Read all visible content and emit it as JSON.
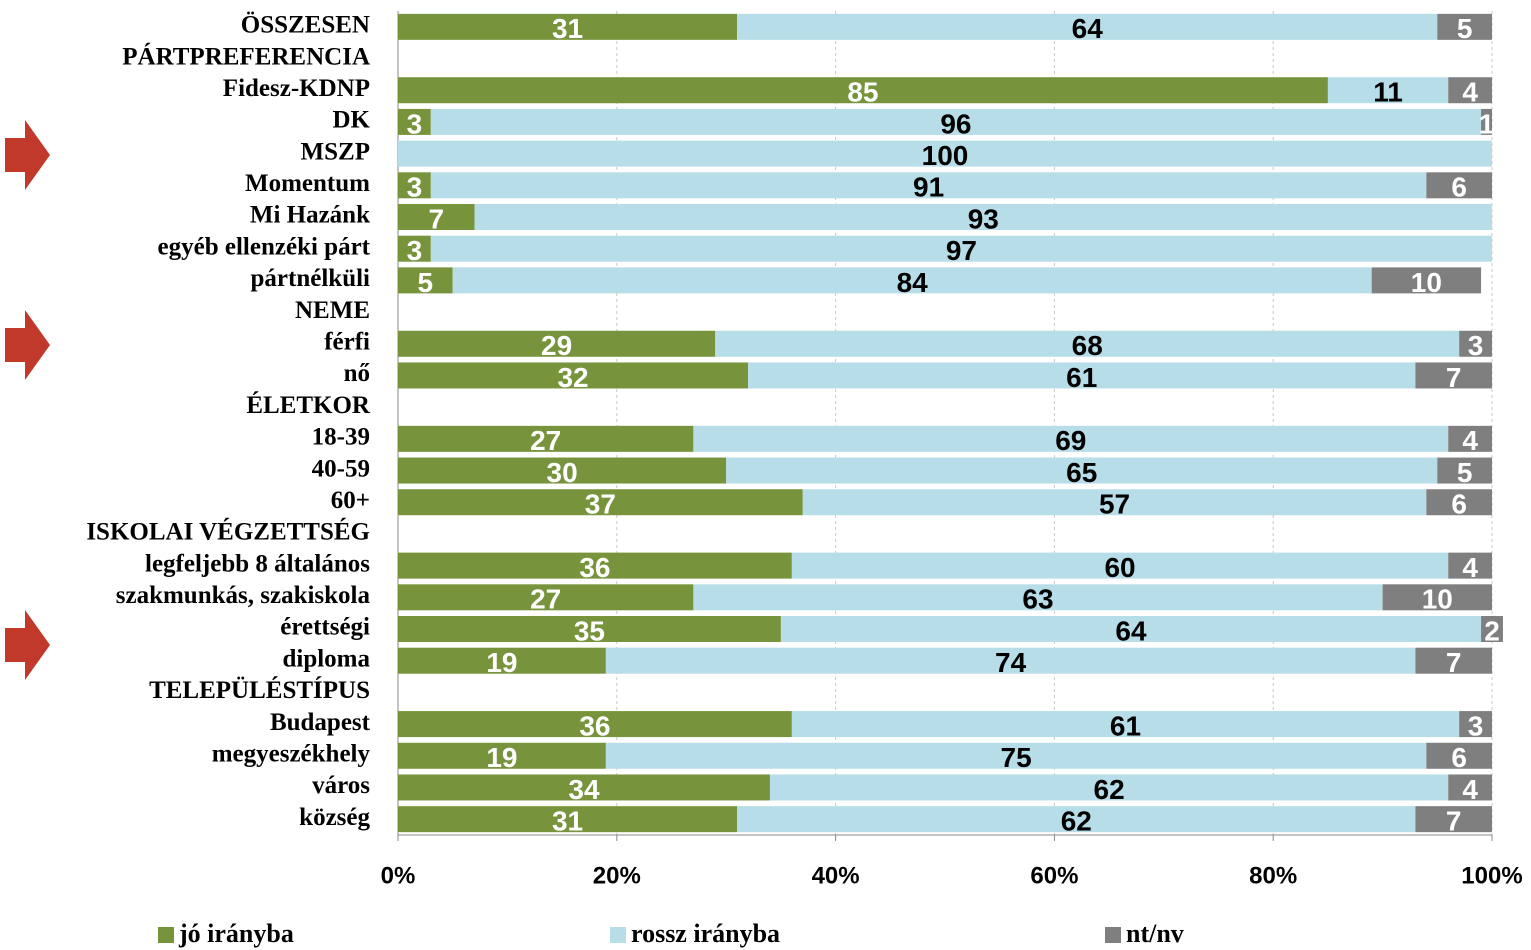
{
  "chart_data": {
    "type": "stacked-bar-horizontal",
    "categories": [
      "ÖSSZESEN",
      "PÁRTPREFERENCIA",
      "Fidesz-KDNP",
      "DK",
      "MSZP",
      "Momentum",
      "Mi Hazánk",
      "egyéb ellenzéki párt",
      "pártnélküli",
      "NEME",
      "férfi",
      "nő",
      "ÉLETKOR",
      "18-39",
      "40-59",
      "60+",
      "ISKOLAI VÉGZETTSÉG",
      "legfeljebb 8 általános",
      "szakmunkás, szakiskola",
      "érettségi",
      "diploma",
      "TELEPÜLÉSTÍPUS",
      "Budapest",
      "megyeszékhely",
      "város",
      "község"
    ],
    "series": [
      {
        "name": "jó irányba",
        "color": "#77933c",
        "label_color": "#ffffff",
        "values": [
          31,
          null,
          85,
          3,
          null,
          3,
          7,
          3,
          5,
          null,
          29,
          32,
          null,
          27,
          30,
          37,
          null,
          36,
          27,
          35,
          19,
          null,
          36,
          19,
          34,
          31
        ]
      },
      {
        "name": "rossz irányba",
        "color": "#b7dde8",
        "label_color": "#000000",
        "values": [
          64,
          null,
          11,
          96,
          100,
          91,
          93,
          97,
          84,
          null,
          68,
          61,
          null,
          69,
          65,
          57,
          null,
          60,
          63,
          64,
          74,
          null,
          61,
          75,
          62,
          62
        ]
      },
      {
        "name": "nt/nv",
        "color": "#7f7f7f",
        "label_color": "#ffffff",
        "values": [
          5,
          null,
          4,
          1,
          null,
          6,
          null,
          null,
          10,
          null,
          3,
          7,
          null,
          4,
          5,
          6,
          null,
          4,
          10,
          2,
          7,
          null,
          3,
          6,
          4,
          7
        ]
      }
    ],
    "xlim": [
      0,
      100
    ],
    "xticks": [
      {
        "value": 0,
        "label": "0%"
      },
      {
        "value": 20,
        "label": "20%"
      },
      {
        "value": 40,
        "label": "40%"
      },
      {
        "value": 60,
        "label": "60%"
      },
      {
        "value": 80,
        "label": "80%"
      },
      {
        "value": 100,
        "label": "100%"
      }
    ],
    "grid": true,
    "legend": "bottom"
  }
}
